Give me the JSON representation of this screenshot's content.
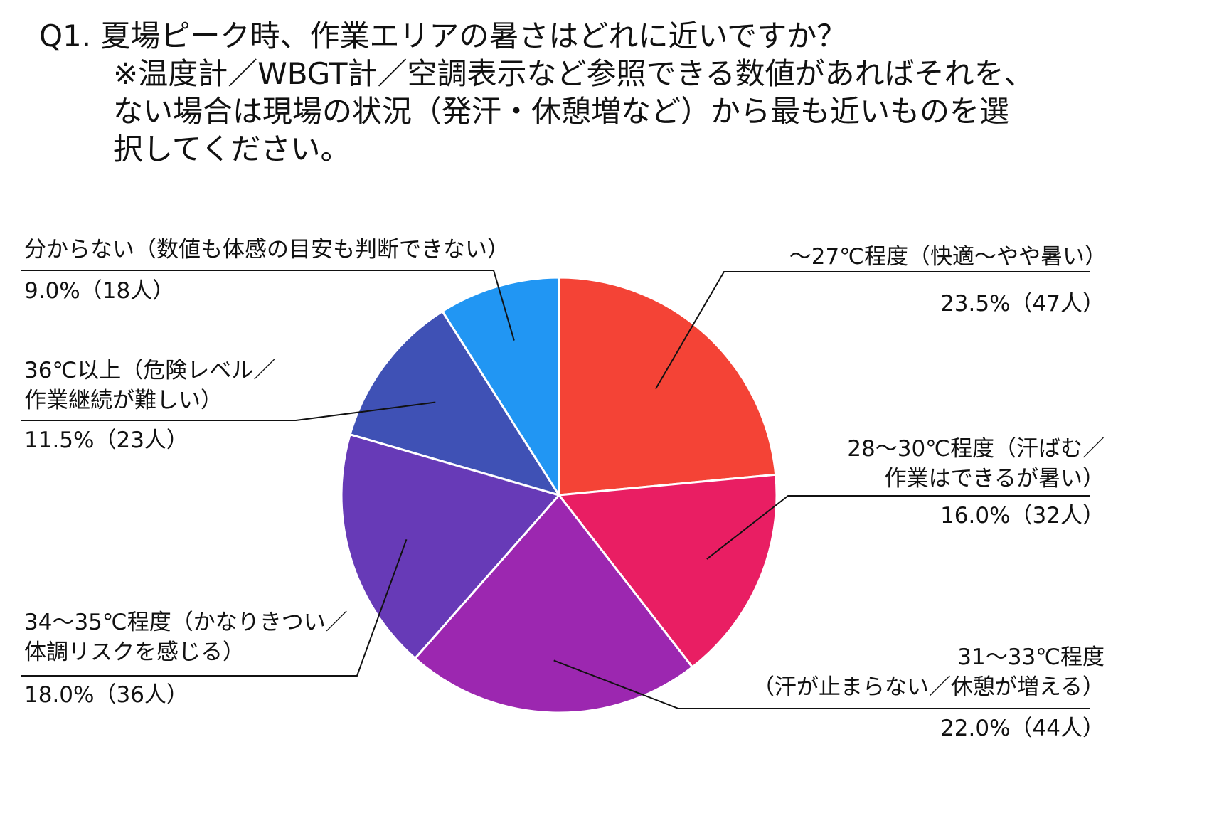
{
  "chart_data": {
    "type": "pie",
    "title": [
      "Q1. 夏場ピーク時、作業エリアの暑さはどれに近いですか？",
      "※温度計／WBGT計／空調表示など参照できる数値があればそれを、",
      "ない場合は現場の状況（発汗・休憩増など）から最も近いものを選",
      "択してください。"
    ],
    "start_angle_deg": 0,
    "direction": "clockwise",
    "slices": [
      {
        "category_lines": [
          "～27℃程度（快適～やや暑い）"
        ],
        "value_label": "23.5%（47人）",
        "percent": 23.5,
        "count": 47,
        "color": "#F44336"
      },
      {
        "category_lines": [
          "28～30℃程度（汗ばむ／",
          "作業はできるが暑い）"
        ],
        "value_label": "16.0%（32人）",
        "percent": 16.0,
        "count": 32,
        "color": "#E91E63"
      },
      {
        "category_lines": [
          "31～33℃程度",
          "（汗が止まらない／休憩が増える）"
        ],
        "value_label": "22.0%（44人）",
        "percent": 22.0,
        "count": 44,
        "color": "#9C27B0"
      },
      {
        "category_lines": [
          "34～35℃程度（かなりきつい／",
          "体調リスクを感じる）"
        ],
        "value_label": "18.0%（36人）",
        "percent": 18.0,
        "count": 36,
        "color": "#673AB7"
      },
      {
        "category_lines": [
          "36℃以上（危険レベル／",
          "作業継続が難しい）"
        ],
        "value_label": "11.5%（23人）",
        "percent": 11.5,
        "count": 23,
        "color": "#3F51B5"
      },
      {
        "category_lines": [
          "分からない（数値も体感の目安も判断できない）"
        ],
        "value_label": "9.0%（18人）",
        "percent": 9.0,
        "count": 18,
        "color": "#2196F3"
      }
    ]
  }
}
